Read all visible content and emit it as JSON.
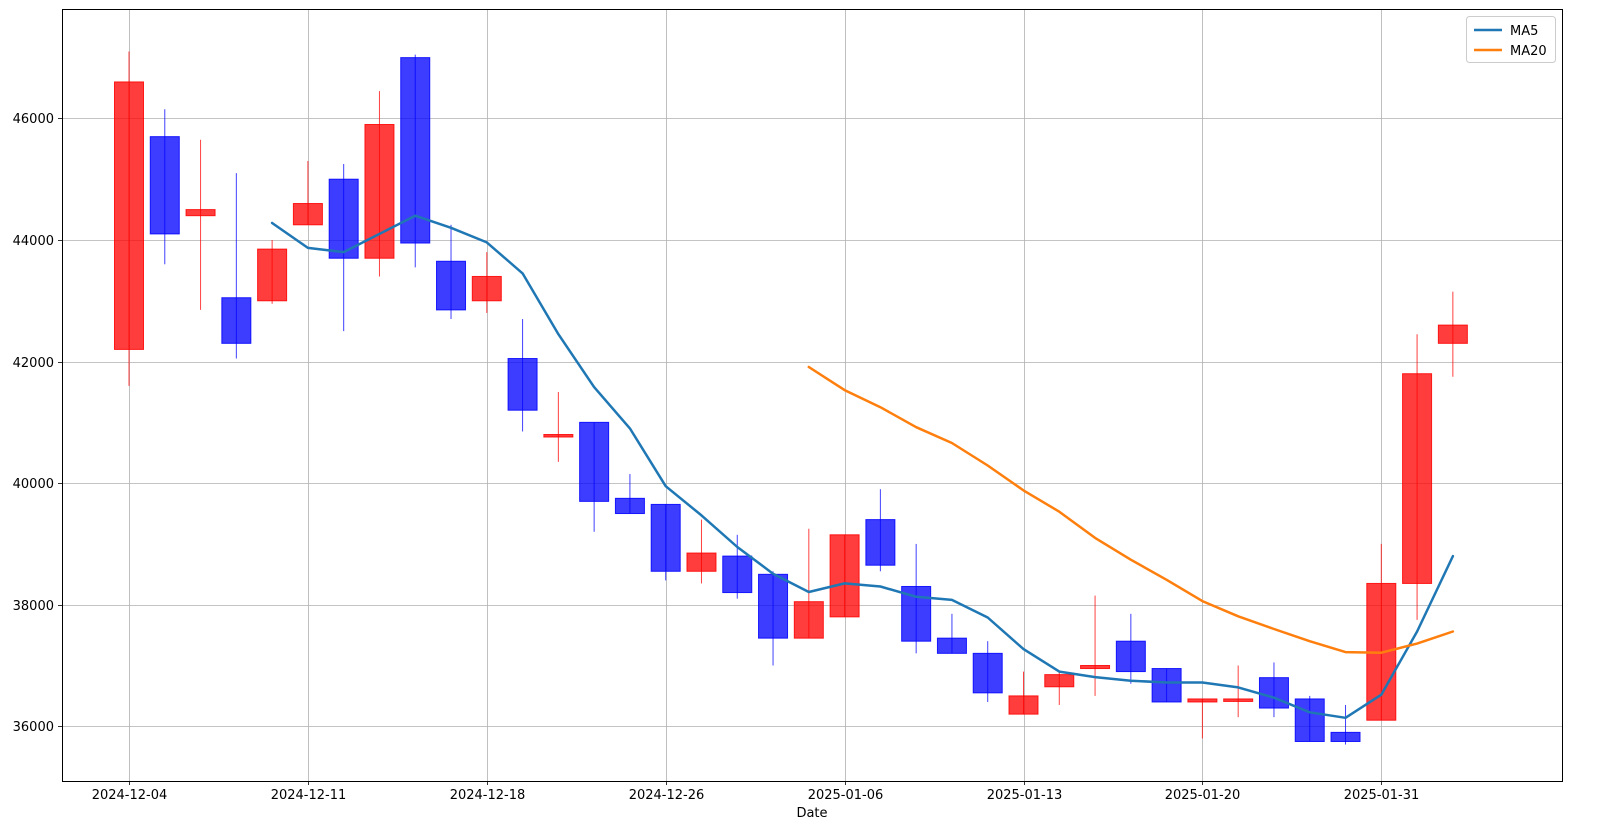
{
  "chart_data": {
    "type": "candlestick",
    "xlabel": "Date",
    "ylabel": "",
    "ylim": [
      35100,
      47800
    ],
    "grid": true,
    "legend_position": "top-right",
    "colors": {
      "up": "#ff0000",
      "down": "#0000ff",
      "ma5": "#1f77b4",
      "ma20": "#ff7f0e"
    },
    "x_ticks": [
      "2024-12-04",
      "2024-12-11",
      "2024-12-18",
      "2024-12-26",
      "2025-01-06",
      "2025-01-13",
      "2025-01-20",
      "2025-01-31"
    ],
    "y_ticks": [
      36000,
      38000,
      40000,
      42000,
      44000,
      46000
    ],
    "candles": [
      {
        "date": "2024-12-04",
        "open": 42200,
        "high": 47100,
        "low": 41600,
        "close": 46600
      },
      {
        "date": "2024-12-05",
        "open": 45700,
        "high": 46150,
        "low": 43600,
        "close": 44100
      },
      {
        "date": "2024-12-06",
        "open": 44400,
        "high": 45650,
        "low": 42850,
        "close": 44500
      },
      {
        "date": "2024-12-09",
        "open": 43050,
        "high": 45100,
        "low": 42050,
        "close": 42300
      },
      {
        "date": "2024-12-10",
        "open": 43000,
        "high": 44000,
        "low": 42950,
        "close": 43850
      },
      {
        "date": "2024-12-11",
        "open": 44250,
        "high": 45300,
        "low": 44250,
        "close": 44600
      },
      {
        "date": "2024-12-12",
        "open": 45000,
        "high": 45250,
        "low": 42500,
        "close": 43700
      },
      {
        "date": "2024-12-13",
        "open": 43700,
        "high": 46450,
        "low": 43400,
        "close": 45900
      },
      {
        "date": "2024-12-16",
        "open": 47000,
        "high": 47050,
        "low": 43550,
        "close": 43950
      },
      {
        "date": "2024-12-17",
        "open": 43650,
        "high": 44250,
        "low": 42700,
        "close": 42850
      },
      {
        "date": "2024-12-18",
        "open": 43000,
        "high": 43800,
        "low": 42800,
        "close": 43400
      },
      {
        "date": "2024-12-19",
        "open": 42050,
        "high": 42700,
        "low": 40850,
        "close": 41200
      },
      {
        "date": "2024-12-20",
        "open": 40800,
        "high": 41500,
        "low": 40350,
        "close": 40800
      },
      {
        "date": "2024-12-23",
        "open": 41000,
        "high": 41000,
        "low": 39200,
        "close": 39700
      },
      {
        "date": "2024-12-24",
        "open": 39750,
        "high": 40150,
        "low": 39500,
        "close": 39500
      },
      {
        "date": "2024-12-26",
        "open": 39650,
        "high": 39650,
        "low": 38400,
        "close": 38550
      },
      {
        "date": "2024-12-27",
        "open": 38550,
        "high": 39400,
        "low": 38350,
        "close": 38850
      },
      {
        "date": "2024-12-30",
        "open": 38800,
        "high": 39150,
        "low": 38100,
        "close": 38200
      },
      {
        "date": "2025-01-02",
        "open": 38500,
        "high": 38550,
        "low": 37000,
        "close": 37450
      },
      {
        "date": "2025-01-03",
        "open": 37450,
        "high": 39250,
        "low": 37450,
        "close": 38050
      },
      {
        "date": "2025-01-06",
        "open": 37800,
        "high": 39150,
        "low": 37800,
        "close": 39150
      },
      {
        "date": "2025-01-07",
        "open": 39400,
        "high": 39900,
        "low": 38550,
        "close": 38650
      },
      {
        "date": "2025-01-08",
        "open": 38300,
        "high": 39000,
        "low": 37200,
        "close": 37400
      },
      {
        "date": "2025-01-09",
        "open": 37450,
        "high": 37850,
        "low": 37200,
        "close": 37200
      },
      {
        "date": "2025-01-10",
        "open": 37200,
        "high": 37400,
        "low": 36400,
        "close": 36550
      },
      {
        "date": "2025-01-13",
        "open": 36200,
        "high": 36900,
        "low": 36200,
        "close": 36500
      },
      {
        "date": "2025-01-14",
        "open": 36650,
        "high": 36900,
        "low": 36350,
        "close": 36850
      },
      {
        "date": "2025-01-15",
        "open": 36950,
        "high": 38150,
        "low": 36500,
        "close": 37000
      },
      {
        "date": "2025-01-16",
        "open": 37400,
        "high": 37850,
        "low": 36700,
        "close": 36900
      },
      {
        "date": "2025-01-17",
        "open": 36950,
        "high": 36950,
        "low": 36400,
        "close": 36400
      },
      {
        "date": "2025-01-20",
        "open": 36400,
        "high": 36450,
        "low": 35800,
        "close": 36450
      },
      {
        "date": "2025-01-21",
        "open": 36450,
        "high": 37000,
        "low": 36150,
        "close": 36450
      },
      {
        "date": "2025-01-22",
        "open": 36800,
        "high": 37050,
        "low": 36150,
        "close": 36300
      },
      {
        "date": "2025-01-23",
        "open": 36450,
        "high": 36500,
        "low": 35750,
        "close": 35750
      },
      {
        "date": "2025-01-24",
        "open": 35900,
        "high": 36350,
        "low": 35700,
        "close": 35750
      },
      {
        "date": "2025-01-31",
        "open": 36100,
        "high": 39000,
        "low": 36100,
        "close": 38350
      },
      {
        "date": "2025-02-03",
        "open": 38350,
        "high": 42450,
        "low": 37750,
        "close": 41800
      },
      {
        "date": "2025-02-04",
        "open": 42300,
        "high": 43150,
        "low": 41750,
        "close": 42600
      }
    ],
    "series": [
      {
        "name": "MA5",
        "start_index": 4,
        "values": [
          44280,
          43870,
          43800,
          44100,
          44400,
          44200,
          43960,
          43450,
          42450,
          41580,
          40900,
          39950,
          39470,
          38950,
          38510,
          38210,
          38350,
          38300,
          38130,
          38080,
          37790,
          37270,
          36900,
          36810,
          36750,
          36720,
          36720,
          36640,
          36470,
          36230,
          36140,
          36520,
          37560,
          38800
        ]
      },
      {
        "name": "MA20",
        "start_index": 19,
        "values": [
          41910,
          41530,
          41250,
          40920,
          40660,
          40290,
          39880,
          39530,
          39100,
          38740,
          38410,
          38060,
          37810,
          37600,
          37400,
          37220,
          37210,
          37360,
          37560
        ]
      }
    ]
  }
}
